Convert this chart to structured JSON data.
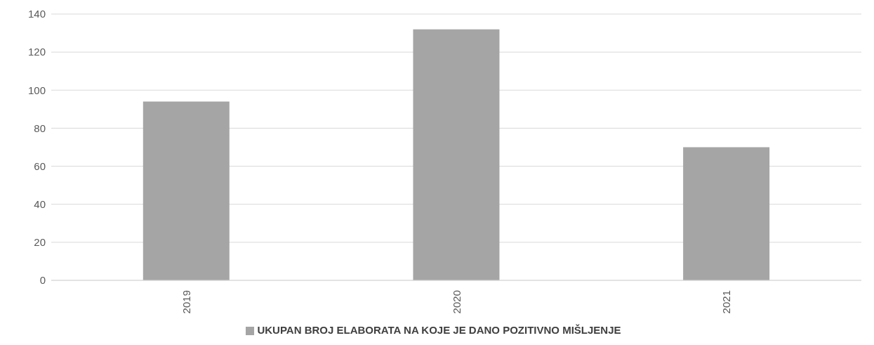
{
  "chart_data": {
    "type": "bar",
    "categories": [
      "2019",
      "2020",
      "2021"
    ],
    "series": [
      {
        "name": "UKUPAN BROJ ELABORATA NA KOJE JE DANO POZITIVNO MIŠLJENJE",
        "color": "#a5a5a5",
        "values": [
          94,
          132,
          70
        ]
      }
    ],
    "ylim": [
      0,
      140
    ],
    "yticks": [
      0,
      20,
      40,
      60,
      80,
      100,
      120,
      140
    ],
    "grid": "y",
    "legend": "bottom"
  }
}
